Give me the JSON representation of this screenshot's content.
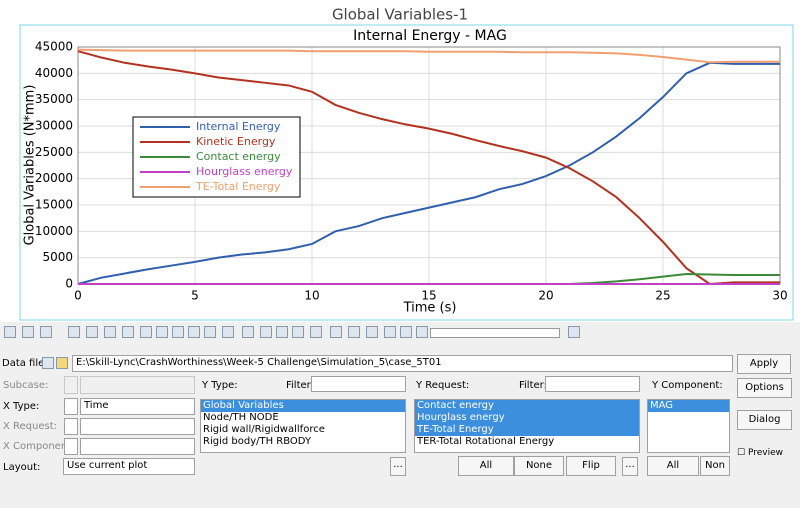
{
  "window_title": "Global Variables-1",
  "chart_data": {
    "type": "line",
    "title": "Internal Energy - MAG",
    "x_label": "Time (s)",
    "y_label": "Global Variables (N*mm)",
    "x": [
      0,
      1,
      2,
      3,
      4,
      5,
      6,
      7,
      8,
      9,
      10,
      11,
      12,
      13,
      14,
      15,
      16,
      17,
      18,
      19,
      20,
      21,
      22,
      23,
      24,
      25,
      26,
      27,
      28,
      29,
      30
    ],
    "series": [
      {
        "name": "Internal Energy",
        "color": "#2f5fad",
        "values": [
          0,
          1200,
          2000,
          2800,
          3500,
          4200,
          5000,
          5600,
          6000,
          6600,
          7600,
          10000,
          11000,
          12500,
          13500,
          14500,
          15500,
          16500,
          18000,
          19000,
          20500,
          22500,
          25000,
          28000,
          31500,
          35500,
          40000,
          42000,
          41800,
          41800,
          41800
        ]
      },
      {
        "name": "Kinetic Energy",
        "color": "#b3321f",
        "values": [
          44200,
          43000,
          42000,
          41300,
          40700,
          40000,
          39200,
          38700,
          38200,
          37700,
          36500,
          34000,
          32500,
          31300,
          30300,
          29500,
          28500,
          27300,
          26200,
          25200,
          24000,
          22000,
          19500,
          16500,
          12500,
          8000,
          3000,
          0,
          300,
          300,
          300
        ]
      },
      {
        "name": "Contact energy",
        "color": "#3a8a3a",
        "values": [
          0,
          0,
          0,
          0,
          0,
          0,
          0,
          0,
          0,
          0,
          0,
          0,
          0,
          0,
          0,
          0,
          0,
          0,
          0,
          0,
          0,
          0,
          200,
          500,
          900,
          1400,
          1900,
          1800,
          1700,
          1700,
          1700
        ]
      },
      {
        "name": "Hourglass energy",
        "color": "#c040c8",
        "values": [
          0,
          0,
          0,
          0,
          0,
          0,
          0,
          0,
          0,
          0,
          0,
          0,
          0,
          0,
          0,
          0,
          0,
          0,
          0,
          0,
          0,
          0,
          0,
          0,
          0,
          0,
          0,
          0,
          0,
          0,
          0
        ]
      },
      {
        "name": "TE-Total Energy",
        "color": "#f0a070",
        "values": [
          44500,
          44400,
          44300,
          44300,
          44300,
          44300,
          44300,
          44300,
          44300,
          44300,
          44200,
          44200,
          44200,
          44200,
          44200,
          44100,
          44100,
          44100,
          44100,
          44000,
          44000,
          44000,
          43900,
          43800,
          43500,
          43100,
          42600,
          42100,
          42200,
          42200,
          42200
        ]
      }
    ],
    "xlim": [
      0,
      30
    ],
    "xticks": [
      0,
      5,
      10,
      15,
      20,
      25,
      30
    ],
    "ylim": [
      0,
      45000
    ],
    "yticks": [
      0,
      5000,
      10000,
      15000,
      20000,
      25000,
      30000,
      35000,
      40000,
      45000
    ],
    "grid": true,
    "legend": "upper left"
  },
  "panel": {
    "data_file_label": "Data file:",
    "data_file": "E:\\Skill-Lync\\CrashWorthiness\\Week-5 Challenge\\Simulation_5\\case_5T01",
    "apply": "Apply",
    "options": "Options",
    "dialog": "Dialog",
    "preview": "Preview",
    "subcase_label": "Subcase:",
    "x_type_label": "X Type:",
    "x_type": "Time",
    "x_request_label": "X Request:",
    "x_component_label": "X Component:",
    "layout_label": "Layout:",
    "layout": "Use current plot",
    "y_type_label": "Y Type:",
    "filter_label": "Filter:",
    "y_request_label": "Y Request:",
    "y_component_label": "Y Component:",
    "y_type_list": [
      {
        "text": "Global Variables",
        "selected": true
      },
      {
        "text": "Node/TH NODE",
        "selected": false
      },
      {
        "text": "Rigid wall/Rigidwallforce",
        "selected": false
      },
      {
        "text": "Rigid body/TH RBODY",
        "selected": false
      }
    ],
    "y_request_list": [
      {
        "text": "Contact energy",
        "selected": true
      },
      {
        "text": "Hourglass energy",
        "selected": true
      },
      {
        "text": "TE-Total Energy",
        "selected": true
      },
      {
        "text": "TER-Total Rotational Energy",
        "selected": false
      }
    ],
    "y_component_list": [
      {
        "text": "MAG",
        "selected": true
      }
    ],
    "more": "...",
    "all": "All",
    "none": "None",
    "flip": "Flip",
    "all_2": "All",
    "none_2": "Non"
  }
}
